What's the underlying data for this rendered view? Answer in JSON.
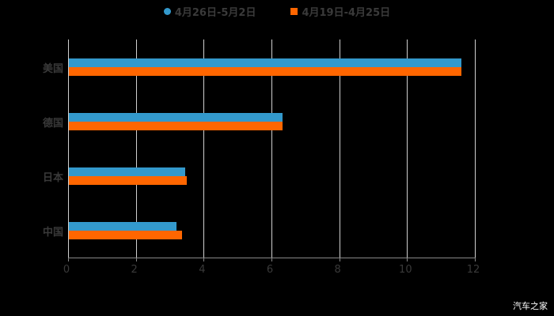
{
  "chart_data": {
    "type": "bar",
    "orientation": "horizontal",
    "title": "",
    "xlabel": "",
    "ylabel": "",
    "categories": [
      "美国",
      "德国",
      "日本",
      "中国"
    ],
    "series": [
      {
        "name": "4月26日-5月2日",
        "color": "#3399cc",
        "values": [
          11.57,
          6.31,
          3.43,
          3.18
        ]
      },
      {
        "name": "4月19日-4月25日",
        "color": "#ff6600",
        "values": [
          11.57,
          6.31,
          3.48,
          3.34
        ]
      }
    ],
    "xlim": [
      0,
      12
    ],
    "xticks": [
      "0",
      "2",
      "4",
      "6",
      "8",
      "10",
      "12"
    ],
    "grid": true,
    "legend_position": "top"
  },
  "legend": {
    "items": [
      {
        "label": "4月26日-5月2日",
        "color": "#3399cc",
        "shape": "circle"
      },
      {
        "label": "4月19日-4月25日",
        "color": "#ff6600",
        "shape": "square"
      }
    ]
  },
  "watermark": "汽车之家"
}
